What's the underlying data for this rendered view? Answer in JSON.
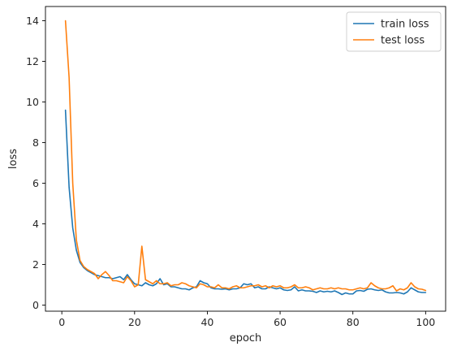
{
  "chart_data": {
    "type": "line",
    "title": "",
    "xlabel": "epoch",
    "ylabel": "loss",
    "xlim": [
      -4.5,
      105.5
    ],
    "ylim": [
      -0.3,
      14.7
    ],
    "xticks": [
      0,
      20,
      40,
      60,
      80,
      100
    ],
    "yticks": [
      0,
      2,
      4,
      6,
      8,
      10,
      12,
      14
    ],
    "grid": false,
    "legend_position": "top-right",
    "x": [
      1,
      2,
      3,
      4,
      5,
      6,
      7,
      8,
      9,
      10,
      11,
      12,
      13,
      14,
      15,
      16,
      17,
      18,
      19,
      20,
      21,
      22,
      23,
      24,
      25,
      26,
      27,
      28,
      29,
      30,
      31,
      32,
      33,
      34,
      35,
      36,
      37,
      38,
      39,
      40,
      41,
      42,
      43,
      44,
      45,
      46,
      47,
      48,
      49,
      50,
      51,
      52,
      53,
      54,
      55,
      56,
      57,
      58,
      59,
      60,
      61,
      62,
      63,
      64,
      65,
      66,
      67,
      68,
      69,
      70,
      71,
      72,
      73,
      74,
      75,
      76,
      77,
      78,
      79,
      80,
      81,
      82,
      83,
      84,
      85,
      86,
      87,
      88,
      89,
      90,
      91,
      92,
      93,
      94,
      95,
      96,
      97,
      98,
      99,
      100
    ],
    "series": [
      {
        "name": "train loss",
        "color": "#1f77b4",
        "values": [
          9.6,
          5.8,
          3.8,
          2.7,
          2.1,
          1.85,
          1.7,
          1.6,
          1.5,
          1.45,
          1.4,
          1.35,
          1.35,
          1.3,
          1.35,
          1.4,
          1.25,
          1.5,
          1.25,
          1.05,
          1.0,
          0.95,
          1.1,
          1.0,
          0.95,
          1.05,
          1.3,
          1.0,
          1.05,
          0.9,
          0.9,
          0.85,
          0.8,
          0.8,
          0.75,
          0.85,
          0.9,
          1.2,
          1.1,
          1.05,
          0.85,
          0.8,
          0.8,
          0.78,
          0.8,
          0.75,
          0.8,
          0.8,
          0.85,
          1.05,
          1.0,
          1.05,
          0.85,
          0.9,
          0.8,
          0.8,
          0.9,
          0.85,
          0.8,
          0.85,
          0.75,
          0.72,
          0.75,
          0.9,
          0.7,
          0.75,
          0.7,
          0.7,
          0.68,
          0.62,
          0.7,
          0.65,
          0.68,
          0.65,
          0.7,
          0.62,
          0.52,
          0.6,
          0.55,
          0.55,
          0.7,
          0.72,
          0.68,
          0.78,
          0.8,
          0.75,
          0.72,
          0.75,
          0.65,
          0.6,
          0.6,
          0.62,
          0.6,
          0.55,
          0.65,
          0.85,
          0.75,
          0.65,
          0.62,
          0.62
        ]
      },
      {
        "name": "test loss",
        "color": "#ff7f0e",
        "values": [
          14.0,
          11.2,
          6.0,
          3.2,
          2.2,
          1.9,
          1.75,
          1.65,
          1.55,
          1.3,
          1.5,
          1.65,
          1.45,
          1.2,
          1.2,
          1.15,
          1.1,
          1.4,
          1.2,
          0.9,
          1.0,
          2.9,
          1.25,
          1.15,
          1.05,
          1.2,
          1.05,
          1.05,
          1.1,
          0.95,
          1.0,
          1.0,
          1.1,
          1.05,
          0.95,
          0.9,
          0.85,
          1.05,
          1.0,
          0.9,
          0.9,
          0.85,
          1.0,
          0.85,
          0.85,
          0.8,
          0.9,
          0.95,
          0.85,
          0.85,
          0.9,
          0.95,
          0.95,
          1.0,
          0.9,
          0.95,
          0.85,
          0.95,
          0.9,
          0.95,
          0.85,
          0.85,
          0.9,
          1.0,
          0.85,
          0.85,
          0.9,
          0.85,
          0.75,
          0.8,
          0.85,
          0.8,
          0.8,
          0.85,
          0.8,
          0.85,
          0.8,
          0.8,
          0.75,
          0.75,
          0.8,
          0.85,
          0.8,
          0.85,
          1.1,
          0.95,
          0.85,
          0.8,
          0.8,
          0.85,
          0.95,
          0.7,
          0.8,
          0.75,
          0.85,
          1.1,
          0.9,
          0.8,
          0.78,
          0.72
        ]
      }
    ]
  }
}
